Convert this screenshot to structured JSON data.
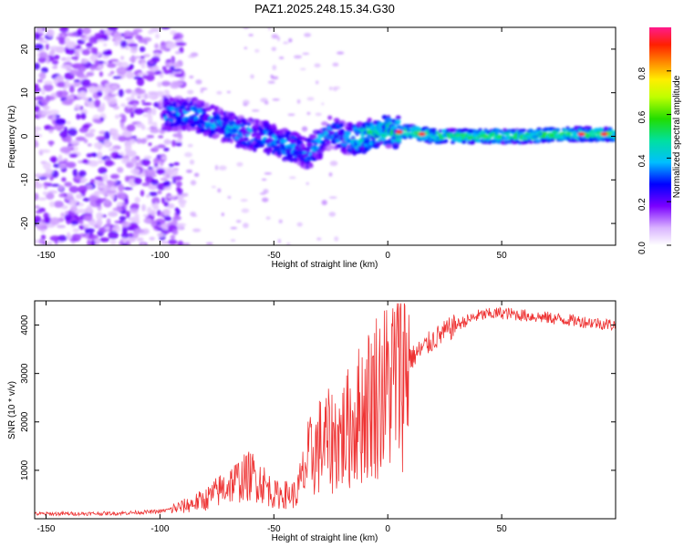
{
  "title": "PAZ1.2025.248.15.34.G30",
  "chart_data": [
    {
      "type": "heatmap",
      "name": "spectrogram",
      "xlabel": "Height of straight line (km)",
      "ylabel": "Frequency (Hz)",
      "xlim": [
        -155,
        100
      ],
      "ylim": [
        -25,
        25
      ],
      "xticks": [
        -150,
        -100,
        -50,
        0,
        50
      ],
      "yticks": [
        -20,
        -10,
        0,
        10,
        20
      ],
      "ridge": {
        "description_points_x": [
          -95,
          -85,
          -75,
          -65,
          -55,
          -45,
          -35,
          -25,
          -15,
          -5,
          0,
          10,
          20,
          40,
          60,
          80,
          100
        ],
        "description_points_y": [
          5,
          5,
          3,
          1,
          0,
          -2,
          -4,
          1,
          -1,
          1,
          1,
          1,
          0,
          0,
          0,
          0.5,
          0.5
        ],
        "peak_amplitude_x": [
          5,
          15,
          85,
          95
        ]
      }
    },
    {
      "type": "colorbar",
      "label": "Normalized spectral amplitude",
      "range": [
        0,
        1
      ],
      "ticks": [
        0.0,
        0.2,
        0.4,
        0.6,
        0.8
      ],
      "tick_labels": [
        "0.0",
        "0.2",
        "0.4",
        "0.6",
        "0.8"
      ]
    },
    {
      "type": "line",
      "name": "snr",
      "xlabel": "Height of straight line (km)",
      "ylabel": "SNR (10 * v/v)",
      "xlim": [
        -155,
        100
      ],
      "ylim": [
        0,
        4500
      ],
      "xticks": [
        -150,
        -100,
        -50,
        0,
        50
      ],
      "yticks": [
        1000,
        2000,
        3000,
        4000
      ],
      "color": "#ee3333",
      "envelope": {
        "x": [
          -155,
          -120,
          -100,
          -90,
          -80,
          -70,
          -60,
          -55,
          -50,
          -40,
          -35,
          -30,
          -25,
          -20,
          -15,
          -10,
          -5,
          0,
          5,
          10,
          15,
          20,
          30,
          40,
          50,
          60,
          70,
          80,
          90,
          100
        ],
        "y": [
          100,
          110,
          150,
          250,
          400,
          700,
          900,
          750,
          500,
          500,
          1200,
          1500,
          1600,
          1700,
          2000,
          2300,
          2600,
          2700,
          3100,
          3300,
          3500,
          3700,
          4000,
          4200,
          4250,
          4200,
          4150,
          4100,
          4050,
          4000
        ]
      }
    }
  ]
}
